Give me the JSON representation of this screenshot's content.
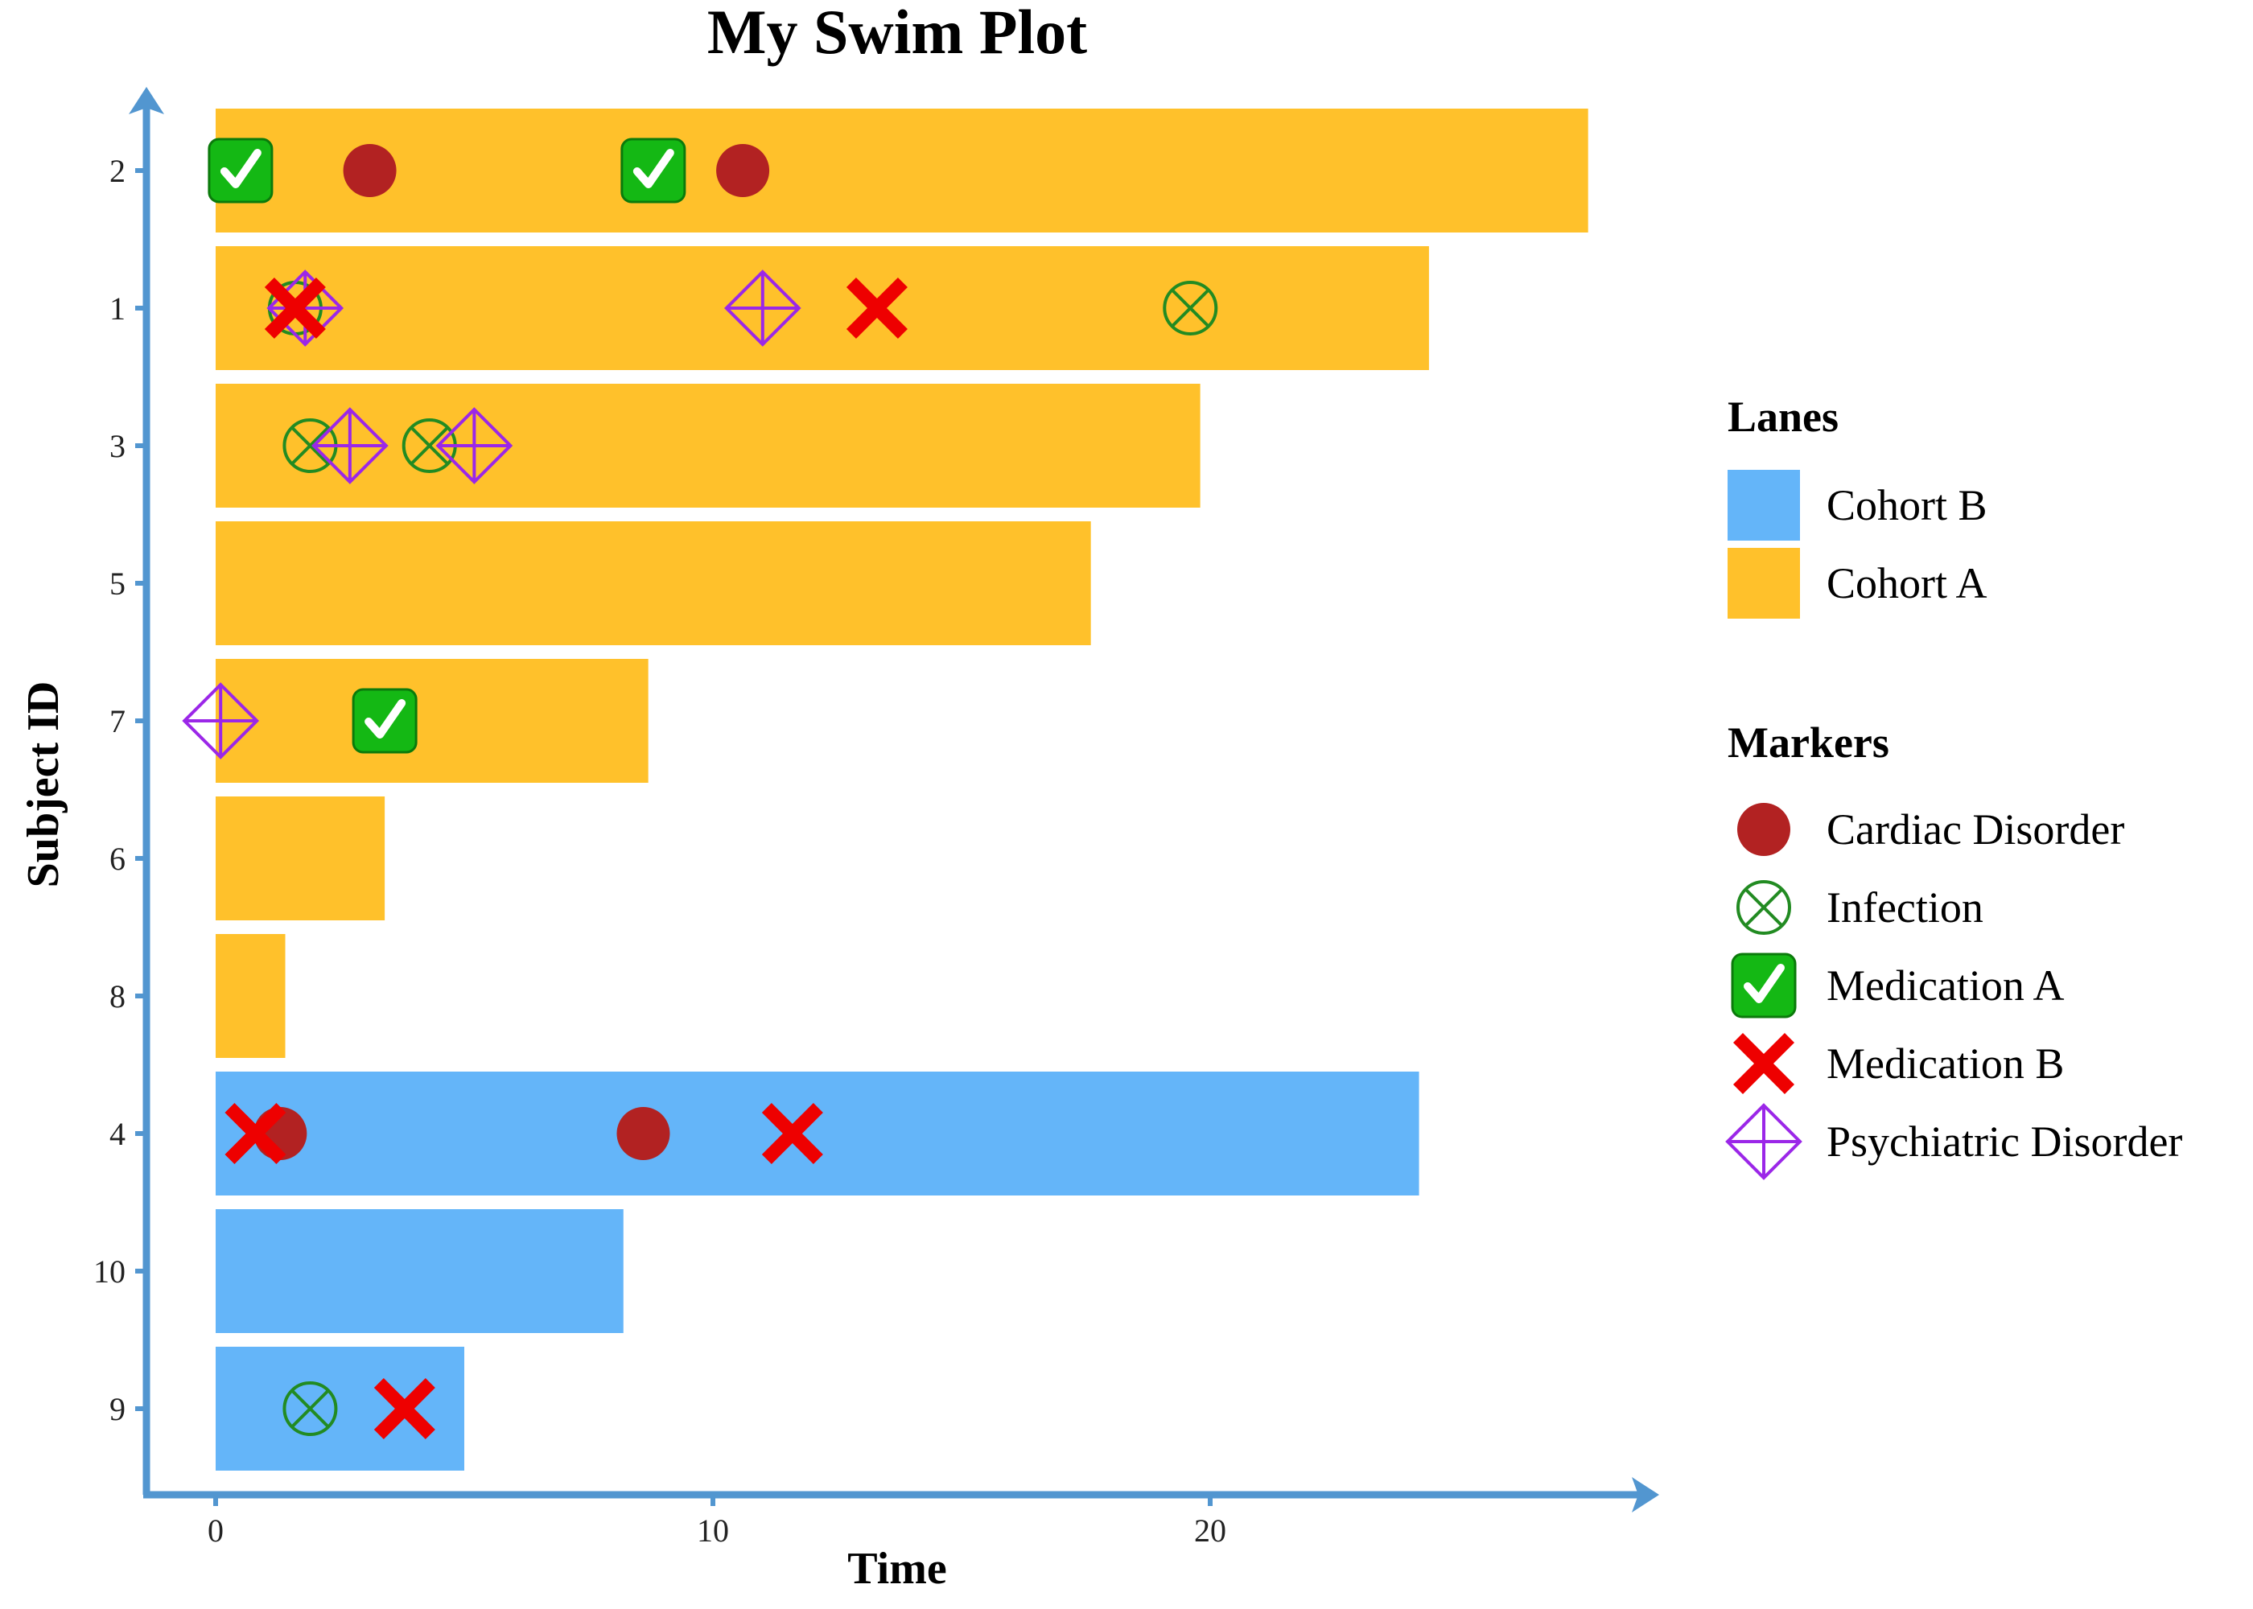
{
  "chart_data": {
    "type": "swimmer",
    "title": "My Swim Plot",
    "xlabel": "Time",
    "ylabel": "Subject ID",
    "xlim": [
      -0.5,
      29
    ],
    "x_ticks": [
      0,
      10,
      20
    ],
    "grid": false,
    "subjects": [
      "2",
      "1",
      "3",
      "5",
      "7",
      "6",
      "8",
      "4",
      "10",
      "9"
    ],
    "colors": {
      "cohort_a": "#FFC12B",
      "cohort_b": "#64B5F9",
      "axis": "#5296D0",
      "cardiac": "#B22222",
      "infection": "#228B22",
      "medication_a": "#14B814",
      "medication_b": "#EE0000",
      "psychiatric": "#9B27E8"
    },
    "lanes": [
      {
        "subject": "2",
        "cohort": "Cohort A",
        "start": 0,
        "end": 27.6
      },
      {
        "subject": "1",
        "cohort": "Cohort A",
        "start": 0,
        "end": 24.4
      },
      {
        "subject": "3",
        "cohort": "Cohort A",
        "start": 0,
        "end": 19.8
      },
      {
        "subject": "5",
        "cohort": "Cohort A",
        "start": 0,
        "end": 17.6
      },
      {
        "subject": "7",
        "cohort": "Cohort A",
        "start": 0,
        "end": 8.7
      },
      {
        "subject": "6",
        "cohort": "Cohort A",
        "start": 0,
        "end": 3.4
      },
      {
        "subject": "8",
        "cohort": "Cohort A",
        "start": 0,
        "end": 1.4
      },
      {
        "subject": "4",
        "cohort": "Cohort B",
        "start": 0,
        "end": 24.2
      },
      {
        "subject": "10",
        "cohort": "Cohort B",
        "start": 0,
        "end": 8.2
      },
      {
        "subject": "9",
        "cohort": "Cohort B",
        "start": 0,
        "end": 5.0
      }
    ],
    "markers": [
      {
        "subject": "2",
        "time": 0.5,
        "type": "Medication A"
      },
      {
        "subject": "2",
        "time": 3.1,
        "type": "Cardiac Disorder"
      },
      {
        "subject": "2",
        "time": 8.8,
        "type": "Medication A"
      },
      {
        "subject": "2",
        "time": 10.6,
        "type": "Cardiac Disorder"
      },
      {
        "subject": "1",
        "time": 1.6,
        "type": "Infection"
      },
      {
        "subject": "1",
        "time": 1.8,
        "type": "Psychiatric Disorder"
      },
      {
        "subject": "1",
        "time": 1.6,
        "type": "Medication B"
      },
      {
        "subject": "1",
        "time": 11.0,
        "type": "Psychiatric Disorder"
      },
      {
        "subject": "1",
        "time": 13.3,
        "type": "Medication B"
      },
      {
        "subject": "1",
        "time": 19.6,
        "type": "Infection"
      },
      {
        "subject": "3",
        "time": 1.9,
        "type": "Infection"
      },
      {
        "subject": "3",
        "time": 2.7,
        "type": "Psychiatric Disorder"
      },
      {
        "subject": "3",
        "time": 4.3,
        "type": "Infection"
      },
      {
        "subject": "3",
        "time": 5.2,
        "type": "Psychiatric Disorder"
      },
      {
        "subject": "7",
        "time": 0.1,
        "type": "Psychiatric Disorder"
      },
      {
        "subject": "7",
        "time": 3.4,
        "type": "Medication A"
      },
      {
        "subject": "4",
        "time": 1.3,
        "type": "Cardiac Disorder"
      },
      {
        "subject": "4",
        "time": 0.8,
        "type": "Medication B"
      },
      {
        "subject": "4",
        "time": 8.6,
        "type": "Cardiac Disorder"
      },
      {
        "subject": "4",
        "time": 11.6,
        "type": "Medication B"
      },
      {
        "subject": "9",
        "time": 1.9,
        "type": "Infection"
      },
      {
        "subject": "9",
        "time": 3.8,
        "type": "Medication B"
      }
    ],
    "legend": {
      "placement": "right",
      "lanes_title": "Lanes",
      "lanes": [
        "Cohort B",
        "Cohort A"
      ],
      "markers_title": "Markers",
      "markers": [
        "Cardiac Disorder",
        "Infection",
        "Medication A",
        "Medication B",
        "Psychiatric Disorder"
      ]
    }
  }
}
